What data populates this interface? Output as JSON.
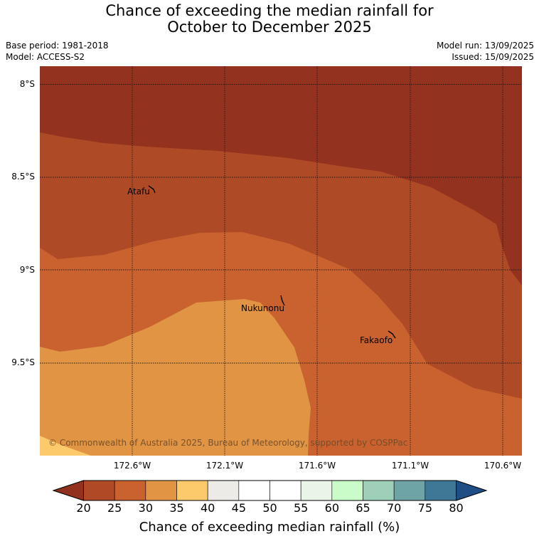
{
  "title_line1": "Chance of exceeding the median rainfall for",
  "title_line2": "October to December 2025",
  "base_period": "Base period: 1981-2018",
  "model": "Model: ACCESS-S2",
  "model_run": "Model run: 13/09/2025",
  "issued": "Issued: 15/09/2025",
  "copyright": "© Commonwealth of Australia 2025, Bureau of Meteorology, supported by COSPPac",
  "lat_labels": [
    "8°S",
    "8.5°S",
    "9°S",
    "9.5°S"
  ],
  "lon_labels": [
    "172.6°W",
    "172.1°W",
    "171.6°W",
    "171.1°W",
    "170.6°W"
  ],
  "places": {
    "atafu": "Atafu",
    "nukunonu": "Nukunonu",
    "fakaofo": "Fakaofo"
  },
  "colorbar": {
    "ticks": [
      "20",
      "25",
      "30",
      "35",
      "40",
      "45",
      "50",
      "55",
      "60",
      "65",
      "70",
      "75",
      "80"
    ],
    "label": "Chance of exceeding median rainfall (%)",
    "extend_low_color": "#92321e",
    "extend_high_color": "#1f4e85",
    "colors": [
      "#b04a26",
      "#c9622f",
      "#e09444",
      "#fcc96b",
      "#ecebe8",
      "#ffffff",
      "#ffffff",
      "#e9f5e6",
      "#c9fcc9",
      "#9ecfb8",
      "#6fa4a7",
      "#3e7896"
    ]
  },
  "legend_colors": {
    "below_20": "#93321e",
    "20_25": "#af4a27",
    "25_30": "#c9622f",
    "30_35": "#e09444",
    "35_40": "#fcc96b"
  }
}
